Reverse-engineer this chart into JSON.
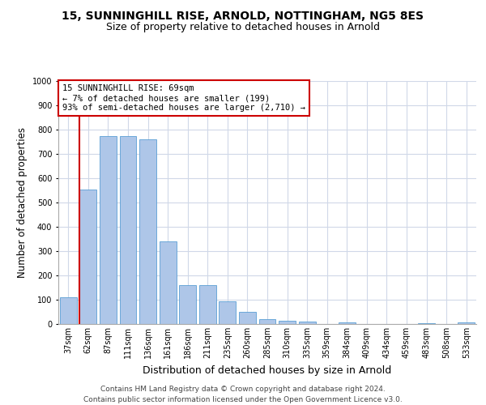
{
  "title_line1": "15, SUNNINGHILL RISE, ARNOLD, NOTTINGHAM, NG5 8ES",
  "title_line2": "Size of property relative to detached houses in Arnold",
  "xlabel": "Distribution of detached houses by size in Arnold",
  "ylabel": "Number of detached properties",
  "categories": [
    "37sqm",
    "62sqm",
    "87sqm",
    "111sqm",
    "136sqm",
    "161sqm",
    "186sqm",
    "211sqm",
    "235sqm",
    "260sqm",
    "285sqm",
    "310sqm",
    "335sqm",
    "359sqm",
    "384sqm",
    "409sqm",
    "434sqm",
    "459sqm",
    "483sqm",
    "508sqm",
    "533sqm"
  ],
  "values": [
    110,
    555,
    775,
    775,
    760,
    340,
    160,
    160,
    95,
    50,
    20,
    12,
    10,
    0,
    8,
    0,
    0,
    0,
    5,
    0,
    8
  ],
  "bar_color": "#aec6e8",
  "bar_edge_color": "#5a9fd4",
  "vline_color": "#cc0000",
  "vline_x_index": 1.5,
  "ylim": [
    0,
    1000
  ],
  "yticks": [
    0,
    100,
    200,
    300,
    400,
    500,
    600,
    700,
    800,
    900,
    1000
  ],
  "annotation_text": "15 SUNNINGHILL RISE: 69sqm\n← 7% of detached houses are smaller (199)\n93% of semi-detached houses are larger (2,710) →",
  "annotation_box_color": "#ffffff",
  "annotation_box_edge": "#cc0000",
  "footer_line1": "Contains HM Land Registry data © Crown copyright and database right 2024.",
  "footer_line2": "Contains public sector information licensed under the Open Government Licence v3.0.",
  "bg_color": "#ffffff",
  "grid_color": "#d0d8e8",
  "title_fontsize": 10,
  "subtitle_fontsize": 9,
  "axis_label_fontsize": 8.5,
  "tick_fontsize": 7,
  "footer_fontsize": 6.5,
  "annotation_fontsize": 7.5
}
